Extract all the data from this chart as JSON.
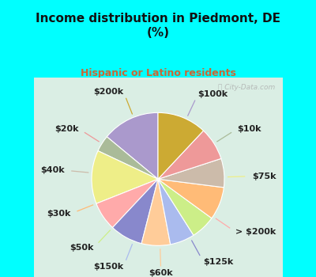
{
  "title": "Income distribution in Piedmont, DE\n(%)",
  "subtitle": "Hispanic or Latino residents",
  "title_color": "#111111",
  "subtitle_color": "#cc6633",
  "bg_color": "#00ffff",
  "chart_bg": "#d8ede0",
  "watermark": "ⓘ City-Data.com",
  "labels": [
    "$100k",
    "$10k",
    "$75k",
    "> $200k",
    "$125k",
    "$60k",
    "$150k",
    "$50k",
    "$30k",
    "$40k",
    "$20k",
    "$200k"
  ],
  "values": [
    14,
    4,
    13,
    7,
    8,
    7,
    6,
    6,
    8,
    7,
    8,
    12
  ],
  "colors": [
    "#aa99cc",
    "#aabb99",
    "#eeee88",
    "#ffaaaa",
    "#8888cc",
    "#ffcc99",
    "#aabbee",
    "#ccee88",
    "#ffbb77",
    "#ccbbaa",
    "#ee9999",
    "#ccaa33"
  ],
  "line_colors": [
    "#aa99cc",
    "#aabb99",
    "#eeee88",
    "#ffaaaa",
    "#8888cc",
    "#ffcc99",
    "#aabbee",
    "#ccee88",
    "#ffbb77",
    "#ccbbaa",
    "#ee9999",
    "#ccaa33"
  ],
  "startangle": 90,
  "label_fontsize": 8,
  "figsize": [
    4.0,
    3.5
  ],
  "dpi": 100
}
